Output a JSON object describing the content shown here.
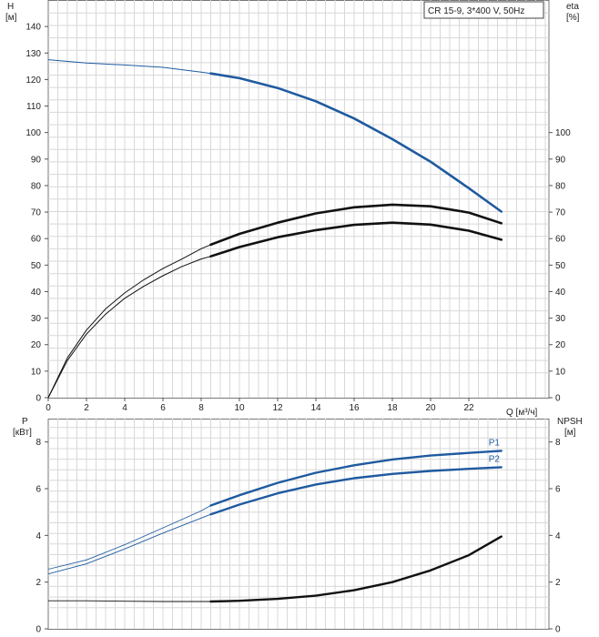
{
  "chart_data": [
    {
      "type": "line",
      "title": "CR 15-9, 3*400 V, 50Hz",
      "x": {
        "label": "Q [м³/ч]",
        "range": [
          0,
          24
        ],
        "ticks": [
          0,
          2,
          4,
          6,
          8,
          10,
          12,
          14,
          16,
          18,
          20,
          22
        ]
      },
      "y_left": {
        "label_top": "H",
        "label_unit": "[м]",
        "range": [
          0,
          150
        ],
        "ticks": [
          0,
          10,
          20,
          30,
          40,
          50,
          60,
          70,
          80,
          90,
          100,
          110,
          120,
          130,
          140
        ]
      },
      "y_right": {
        "label_top": "eta",
        "label_unit": "[%]",
        "range": [
          0,
          150
        ],
        "ticks": [
          0,
          10,
          20,
          30,
          40,
          50,
          60,
          70,
          80,
          90,
          100
        ]
      },
      "grid": true,
      "series": [
        {
          "key": "H",
          "axis": "left",
          "color": "#1f5aa0",
          "duty_from": 8.5,
          "points": [
            [
              0,
              127.5
            ],
            [
              2,
              126.2
            ],
            [
              4,
              125.5
            ],
            [
              6,
              124.6
            ],
            [
              8,
              122.8
            ],
            [
              8.5,
              122.3
            ],
            [
              10,
              120.5
            ],
            [
              12,
              116.8
            ],
            [
              14,
              111.8
            ],
            [
              16,
              105.3
            ],
            [
              18,
              97.5
            ],
            [
              20,
              89
            ],
            [
              22,
              79
            ],
            [
              23.7,
              70.2
            ]
          ]
        },
        {
          "key": "eta_total",
          "axis": "right",
          "color": "#111111",
          "duty_from": 8.5,
          "points": [
            [
              0,
              0
            ],
            [
              1,
              14
            ],
            [
              2,
              24
            ],
            [
              3,
              31.5
            ],
            [
              4,
              37.5
            ],
            [
              5,
              42
            ],
            [
              6,
              46
            ],
            [
              7,
              49.5
            ],
            [
              8,
              52.3
            ],
            [
              8.5,
              53.3
            ],
            [
              10,
              56.8
            ],
            [
              12,
              60.5
            ],
            [
              14,
              63.2
            ],
            [
              16,
              65.2
            ],
            [
              18,
              66
            ],
            [
              20,
              65.3
            ],
            [
              22,
              63
            ],
            [
              23.7,
              59.6
            ]
          ]
        },
        {
          "key": "eta_pump",
          "axis": "right",
          "color": "#111111",
          "duty_from": 8.5,
          "points": [
            [
              0,
              0
            ],
            [
              1,
              15
            ],
            [
              2,
              25.5
            ],
            [
              3,
              33.5
            ],
            [
              4,
              39.5
            ],
            [
              5,
              44.5
            ],
            [
              6,
              48.7
            ],
            [
              7,
              52.3
            ],
            [
              8,
              56.2
            ],
            [
              8.5,
              57.7
            ],
            [
              10,
              61.8
            ],
            [
              12,
              66
            ],
            [
              14,
              69.5
            ],
            [
              16,
              71.8
            ],
            [
              18,
              72.8
            ],
            [
              20,
              72.2
            ],
            [
              22,
              69.8
            ],
            [
              23.7,
              65.8
            ]
          ]
        }
      ]
    },
    {
      "type": "line",
      "x": {
        "range": [
          0,
          24
        ]
      },
      "y_left": {
        "label_top": "P",
        "label_unit": "[кВт]",
        "range": [
          0,
          9
        ],
        "ticks": [
          0,
          2,
          4,
          6,
          8
        ]
      },
      "y_right": {
        "label_top": "NPSH",
        "label_unit": "[м]",
        "range": [
          0,
          9
        ],
        "ticks": [
          0,
          2,
          4,
          6,
          8
        ]
      },
      "grid": true,
      "series": [
        {
          "name": "P1",
          "axis": "left",
          "color": "#1f5aa0",
          "duty_from": 8.5,
          "points": [
            [
              0,
              2.55
            ],
            [
              2,
              2.95
            ],
            [
              4,
              3.6
            ],
            [
              6,
              4.32
            ],
            [
              8,
              5.05
            ],
            [
              8.5,
              5.28
            ],
            [
              10,
              5.72
            ],
            [
              12,
              6.25
            ],
            [
              14,
              6.68
            ],
            [
              16,
              7.0
            ],
            [
              18,
              7.25
            ],
            [
              20,
              7.42
            ],
            [
              22,
              7.53
            ],
            [
              23.7,
              7.62
            ]
          ]
        },
        {
          "name": "P2",
          "axis": "left",
          "color": "#1f5aa0",
          "duty_from": 8.5,
          "points": [
            [
              0,
              2.35
            ],
            [
              2,
              2.78
            ],
            [
              4,
              3.42
            ],
            [
              6,
              4.1
            ],
            [
              8,
              4.74
            ],
            [
              8.5,
              4.9
            ],
            [
              10,
              5.32
            ],
            [
              12,
              5.8
            ],
            [
              14,
              6.18
            ],
            [
              16,
              6.45
            ],
            [
              18,
              6.63
            ],
            [
              20,
              6.76
            ],
            [
              22,
              6.85
            ],
            [
              23.7,
              6.92
            ]
          ]
        },
        {
          "key": "NPSH",
          "axis": "right",
          "color": "#111111",
          "duty_from": 8.5,
          "points": [
            [
              0,
              1.2
            ],
            [
              2,
              1.2
            ],
            [
              4,
              1.18
            ],
            [
              6,
              1.17
            ],
            [
              8,
              1.17
            ],
            [
              8.5,
              1.17
            ],
            [
              10,
              1.2
            ],
            [
              12,
              1.28
            ],
            [
              14,
              1.42
            ],
            [
              16,
              1.65
            ],
            [
              18,
              2.0
            ],
            [
              20,
              2.5
            ],
            [
              22,
              3.15
            ],
            [
              23.7,
              3.95
            ]
          ]
        }
      ]
    }
  ]
}
